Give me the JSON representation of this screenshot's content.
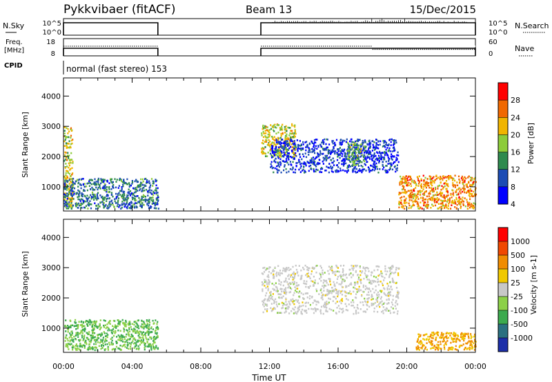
{
  "header": {
    "title": "Pykkvibaer (fitACF)",
    "beam": "Beam 13",
    "date": "15/Dec/2015"
  },
  "params": {
    "nsky_label": "N.Sky",
    "nsky_ticks": [
      "10^5",
      "10^0"
    ],
    "nsearch_label": "N.Search",
    "nsearch_ticks": [
      "10^5",
      "10^0"
    ],
    "freq_label_1": "Freq.",
    "freq_label_2": "[MHz]",
    "freq_ticks": [
      "18",
      "8"
    ],
    "nave_label": "Nave",
    "nave_ticks": [
      "60",
      "0"
    ],
    "cpid_label": "CPID",
    "cpid_text": "normal (fast stereo) 153"
  },
  "power_panel": {
    "ylabel": "Slant Range [km]",
    "yticks": [
      "4000",
      "3000",
      "2000",
      "1000"
    ],
    "colorbar_label": "Power [dB]",
    "colorbar_ticks": [
      "28",
      "24",
      "20",
      "16",
      "12",
      "8",
      "4"
    ],
    "colors": [
      "#0000ff",
      "#1c4cb4",
      "#2e8a4e",
      "#8ccc3a",
      "#f0b400",
      "#f06800",
      "#ff0000"
    ]
  },
  "velocity_panel": {
    "ylabel": "Slant Range [km]",
    "yticks": [
      "4000",
      "3000",
      "2000",
      "1000"
    ],
    "colorbar_label": "Velocity [m s-1]",
    "colorbar_ticks": [
      "1000",
      "500",
      "100",
      "25",
      "-25",
      "-100",
      "-500",
      "-1000"
    ],
    "colors": [
      "#1c2ea8",
      "#2a7080",
      "#3caa4e",
      "#8cd048",
      "#c8c8c8",
      "#f0c800",
      "#f08c00",
      "#f04800",
      "#ff0000"
    ]
  },
  "xaxis": {
    "ticks": [
      "00:00",
      "04:00",
      "08:00",
      "12:00",
      "16:00",
      "20:00",
      "00:00"
    ],
    "label": "Time UT"
  },
  "chart_data": {
    "type": "heatmap",
    "title": "Pykkvibaer (fitACF)",
    "xlabel": "Time UT",
    "ylabel": "Slant Range [km]",
    "xlim": [
      0,
      24
    ],
    "ylim": [
      200,
      4600
    ],
    "operation_intervals_hours": [
      [
        0,
        5.5
      ],
      [
        11.5,
        24
      ]
    ],
    "freq_mhz_approx": 10,
    "nave_change_hours": 18.0,
    "power_regions": [
      {
        "t": [
          0.0,
          0.5
        ],
        "range": [
          300,
          3000
        ],
        "power_db": 20
      },
      {
        "t": [
          0.0,
          5.5
        ],
        "range": [
          300,
          1300
        ],
        "power_db": 12
      },
      {
        "t": [
          11.5,
          13.5
        ],
        "range": [
          2000,
          3100
        ],
        "power_db": 20
      },
      {
        "t": [
          12.0,
          19.5
        ],
        "range": [
          1500,
          2600
        ],
        "power_db": 8
      },
      {
        "t": [
          16.5,
          17.5
        ],
        "range": [
          1700,
          2500
        ],
        "power_db": 16
      },
      {
        "t": [
          19.5,
          24.0
        ],
        "range": [
          300,
          1400
        ],
        "power_db": 24
      }
    ],
    "velocity_regions": [
      {
        "t": [
          0.0,
          5.5
        ],
        "range": [
          300,
          1300
        ],
        "velocity_ms": -100
      },
      {
        "t": [
          11.5,
          19.5
        ],
        "range": [
          1500,
          3100
        ],
        "velocity_ms": 0
      },
      {
        "t": [
          20.5,
          24.0
        ],
        "range": [
          300,
          900
        ],
        "velocity_ms": 100
      }
    ]
  }
}
